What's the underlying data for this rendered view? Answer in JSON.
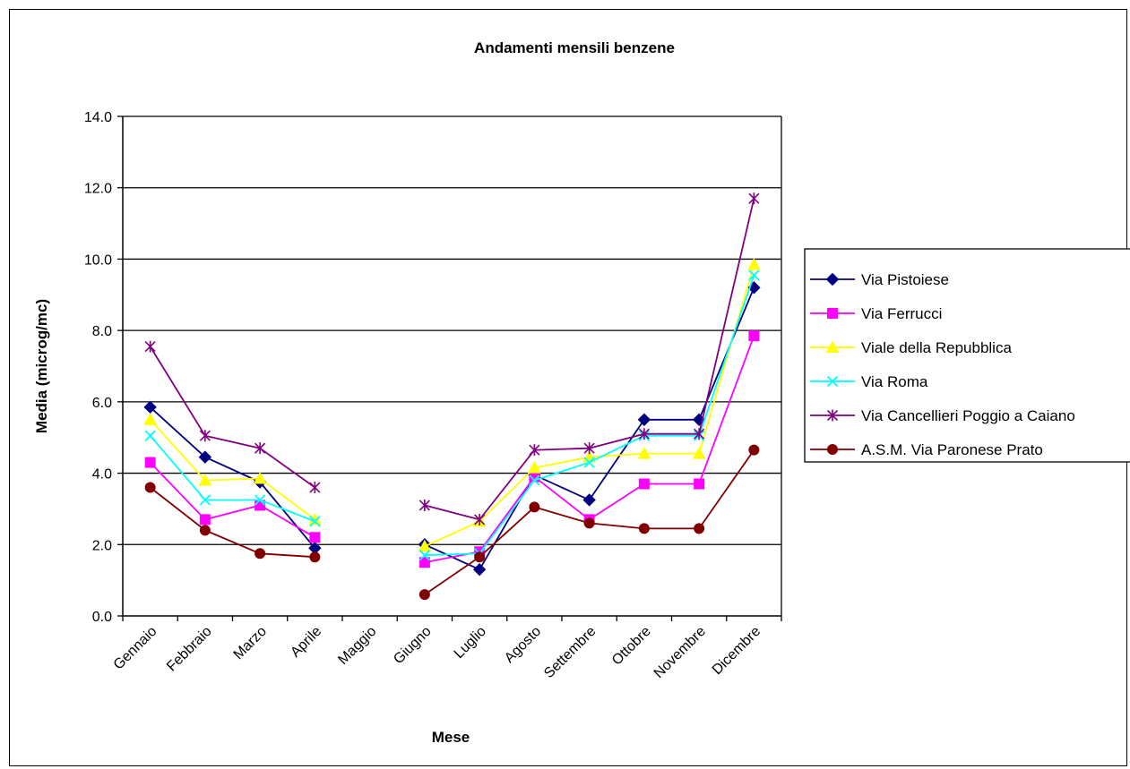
{
  "chart_data": {
    "type": "line",
    "title": "Andamenti mensili benzene",
    "xlabel": "Mese",
    "ylabel": "Media (microg/mc)",
    "ylim": [
      0,
      14
    ],
    "ytick_step": 2,
    "ytick_labels": [
      "0.0",
      "2.0",
      "4.0",
      "6.0",
      "8.0",
      "10.0",
      "12.0",
      "14.0"
    ],
    "grid": true,
    "legend_position": "right",
    "categories": [
      "Gennaio",
      "Febbraio",
      "Marzo",
      "Aprile",
      "Maggio",
      "Giugno",
      "Luglio",
      "Agosto",
      "Settembre",
      "Ottobre",
      "Novembre",
      "Dicembre"
    ],
    "series": [
      {
        "name": "Via Pistoiese",
        "color": "#000080",
        "marker": "diamond",
        "values": [
          5.85,
          4.45,
          3.75,
          1.9,
          null,
          2.0,
          1.3,
          3.95,
          3.25,
          5.5,
          5.5,
          9.2
        ]
      },
      {
        "name": "Via Ferrucci",
        "color": "#ff00ff",
        "marker": "square",
        "values": [
          4.3,
          2.7,
          3.1,
          2.2,
          null,
          1.5,
          1.8,
          3.9,
          2.7,
          3.7,
          3.7,
          7.85
        ]
      },
      {
        "name": "Viale della Repubblica",
        "color": "#ffff00",
        "marker": "triangle",
        "values": [
          5.5,
          3.8,
          3.85,
          2.7,
          null,
          1.95,
          2.65,
          4.15,
          4.45,
          4.55,
          4.55,
          9.85
        ]
      },
      {
        "name": "Via Roma",
        "color": "#00ffff",
        "marker": "x",
        "values": [
          5.05,
          3.25,
          3.25,
          2.65,
          null,
          1.7,
          1.75,
          3.8,
          4.3,
          5.05,
          5.05,
          9.55
        ]
      },
      {
        "name": "Via Cancellieri Poggio a Caiano",
        "color": "#800080",
        "marker": "star",
        "values": [
          7.55,
          5.05,
          4.7,
          3.6,
          null,
          3.1,
          2.7,
          4.65,
          4.7,
          5.1,
          5.1,
          11.7
        ]
      },
      {
        "name": "A.S.M. Via Paronese Prato",
        "color": "#800000",
        "marker": "circle",
        "values": [
          3.6,
          2.4,
          1.75,
          1.65,
          null,
          0.6,
          1.65,
          3.05,
          2.6,
          2.45,
          2.45,
          4.65
        ]
      }
    ]
  }
}
